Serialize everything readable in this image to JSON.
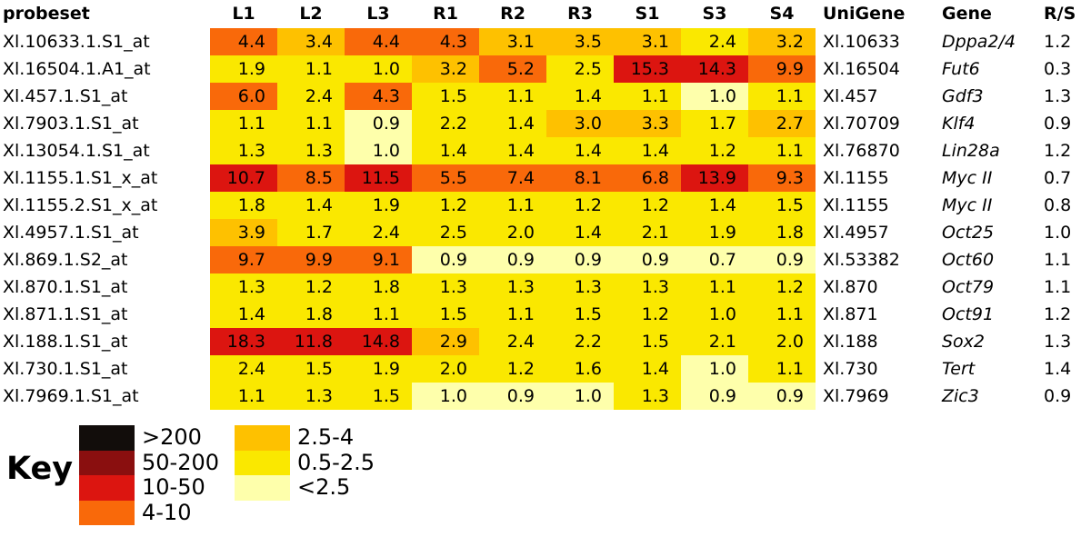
{
  "table": {
    "header": {
      "probeset": "probeset",
      "unigene": "UniGene",
      "gene": "Gene",
      "rs": "R/S"
    }
  },
  "palette": {
    "black": "#120d0b",
    "darkred": "#8a0f0f",
    "red": "#dc1510",
    "orange": "#f9690a",
    "amber": "#fec100",
    "yellow": "#fae800",
    "pale": "#feffab"
  },
  "key": {
    "label": "Key",
    "left_entries": [
      {
        "swatch": "black",
        "label": ">200"
      },
      {
        "swatch": "darkred",
        "label": "50-200"
      },
      {
        "swatch": "red",
        "label": "10-50"
      },
      {
        "swatch": "orange",
        "label": "4-10"
      }
    ],
    "right_entries": [
      {
        "swatch": "amber",
        "label": "2.5-4"
      },
      {
        "swatch": "yellow",
        "label": "0.5-2.5"
      },
      {
        "swatch": "pale",
        "label": "<2.5"
      }
    ]
  },
  "chart_data": {
    "type": "heatmap",
    "title": "",
    "columns": [
      "L1",
      "L2",
      "L3",
      "R1",
      "R2",
      "R3",
      "S1",
      "S3",
      "S4"
    ],
    "color_key": {
      "black": ">200",
      "darkred": "50-200",
      "red": "10-50",
      "orange": "4-10",
      "amber": "2.5-4",
      "yellow": "0.5-2.5",
      "pale": "<2.5"
    },
    "rows": [
      {
        "probeset": "Xl.10633.1.S1_at",
        "unigene": "Xl.10633",
        "gene": "Dppa2/4",
        "rs": "1.2",
        "values": [
          4.4,
          3.4,
          4.4,
          4.3,
          3.1,
          3.5,
          3.1,
          2.4,
          3.2
        ],
        "colors": [
          "orange",
          "amber",
          "orange",
          "orange",
          "amber",
          "amber",
          "amber",
          "yellow",
          "amber"
        ]
      },
      {
        "probeset": "Xl.16504.1.A1_at",
        "unigene": "Xl.16504",
        "gene": "Fut6",
        "rs": "0.3",
        "values": [
          1.9,
          1.1,
          1.0,
          3.2,
          5.2,
          2.5,
          15.3,
          14.3,
          9.9
        ],
        "colors": [
          "yellow",
          "yellow",
          "yellow",
          "amber",
          "orange",
          "yellow",
          "red",
          "red",
          "orange"
        ]
      },
      {
        "probeset": "Xl.457.1.S1_at",
        "unigene": "Xl.457",
        "gene": "Gdf3",
        "rs": "1.3",
        "values": [
          6.0,
          2.4,
          4.3,
          1.5,
          1.1,
          1.4,
          1.1,
          1.0,
          1.1
        ],
        "colors": [
          "orange",
          "yellow",
          "orange",
          "yellow",
          "yellow",
          "yellow",
          "yellow",
          "pale",
          "yellow"
        ]
      },
      {
        "probeset": "Xl.7903.1.S1_at",
        "unigene": "Xl.70709",
        "gene": "Klf4",
        "rs": "0.9",
        "values": [
          1.1,
          1.1,
          0.9,
          2.2,
          1.4,
          3.0,
          3.3,
          1.7,
          2.7
        ],
        "colors": [
          "yellow",
          "yellow",
          "pale",
          "yellow",
          "yellow",
          "amber",
          "amber",
          "yellow",
          "amber"
        ]
      },
      {
        "probeset": "Xl.13054.1.S1_at",
        "unigene": "Xl.76870",
        "gene": "Lin28a",
        "rs": "1.2",
        "values": [
          1.3,
          1.3,
          1.0,
          1.4,
          1.4,
          1.4,
          1.4,
          1.2,
          1.1
        ],
        "colors": [
          "yellow",
          "yellow",
          "pale",
          "yellow",
          "yellow",
          "yellow",
          "yellow",
          "yellow",
          "yellow"
        ]
      },
      {
        "probeset": "Xl.1155.1.S1_x_at",
        "unigene": "Xl.1155",
        "gene": "Myc II",
        "rs": "0.7",
        "values": [
          10.7,
          8.5,
          11.5,
          5.5,
          7.4,
          8.1,
          6.8,
          13.9,
          9.3
        ],
        "colors": [
          "red",
          "orange",
          "red",
          "orange",
          "orange",
          "orange",
          "orange",
          "red",
          "orange"
        ]
      },
      {
        "probeset": "Xl.1155.2.S1_x_at",
        "unigene": "Xl.1155",
        "gene": "Myc II",
        "rs": "0.8",
        "values": [
          1.8,
          1.4,
          1.9,
          1.2,
          1.1,
          1.2,
          1.2,
          1.4,
          1.5
        ],
        "colors": [
          "yellow",
          "yellow",
          "yellow",
          "yellow",
          "yellow",
          "yellow",
          "yellow",
          "yellow",
          "yellow"
        ]
      },
      {
        "probeset": "Xl.4957.1.S1_at",
        "unigene": "Xl.4957",
        "gene": "Oct25",
        "rs": "1.0",
        "values": [
          3.9,
          1.7,
          2.4,
          2.5,
          2.0,
          1.4,
          2.1,
          1.9,
          1.8
        ],
        "colors": [
          "amber",
          "yellow",
          "yellow",
          "yellow",
          "yellow",
          "yellow",
          "yellow",
          "yellow",
          "yellow"
        ]
      },
      {
        "probeset": "Xl.869.1.S2_at",
        "unigene": "Xl.53382",
        "gene": "Oct60",
        "rs": "1.1",
        "values": [
          9.7,
          9.9,
          9.1,
          0.9,
          0.9,
          0.9,
          0.9,
          0.7,
          0.9
        ],
        "colors": [
          "orange",
          "orange",
          "orange",
          "pale",
          "pale",
          "pale",
          "pale",
          "pale",
          "pale"
        ]
      },
      {
        "probeset": "Xl.870.1.S1_at",
        "unigene": "Xl.870",
        "gene": "Oct79",
        "rs": "1.1",
        "values": [
          1.3,
          1.2,
          1.8,
          1.3,
          1.3,
          1.3,
          1.3,
          1.1,
          1.2
        ],
        "colors": [
          "yellow",
          "yellow",
          "yellow",
          "yellow",
          "yellow",
          "yellow",
          "yellow",
          "yellow",
          "yellow"
        ]
      },
      {
        "probeset": "Xl.871.1.S1_at",
        "unigene": "Xl.871",
        "gene": "Oct91",
        "rs": "1.2",
        "values": [
          1.4,
          1.8,
          1.1,
          1.5,
          1.1,
          1.5,
          1.2,
          1.0,
          1.1
        ],
        "colors": [
          "yellow",
          "yellow",
          "yellow",
          "yellow",
          "yellow",
          "yellow",
          "yellow",
          "yellow",
          "yellow"
        ]
      },
      {
        "probeset": "Xl.188.1.S1_at",
        "unigene": "Xl.188",
        "gene": "Sox2",
        "rs": "1.3",
        "values": [
          18.3,
          11.8,
          14.8,
          2.9,
          2.4,
          2.2,
          1.5,
          2.1,
          2.0
        ],
        "colors": [
          "red",
          "red",
          "red",
          "amber",
          "yellow",
          "yellow",
          "yellow",
          "yellow",
          "yellow"
        ]
      },
      {
        "probeset": "Xl.730.1.S1_at",
        "unigene": "Xl.730",
        "gene": "Tert",
        "rs": "1.4",
        "values": [
          2.4,
          1.5,
          1.9,
          2.0,
          1.2,
          1.6,
          1.4,
          1.0,
          1.1
        ],
        "colors": [
          "yellow",
          "yellow",
          "yellow",
          "yellow",
          "yellow",
          "yellow",
          "yellow",
          "pale",
          "yellow"
        ]
      },
      {
        "probeset": "Xl.7969.1.S1_at",
        "unigene": "Xl.7969",
        "gene": "Zic3",
        "rs": "0.9",
        "values": [
          1.1,
          1.3,
          1.5,
          1.0,
          0.9,
          1.0,
          1.3,
          0.9,
          0.9
        ],
        "colors": [
          "yellow",
          "yellow",
          "yellow",
          "pale",
          "pale",
          "pale",
          "yellow",
          "pale",
          "pale"
        ]
      }
    ]
  }
}
